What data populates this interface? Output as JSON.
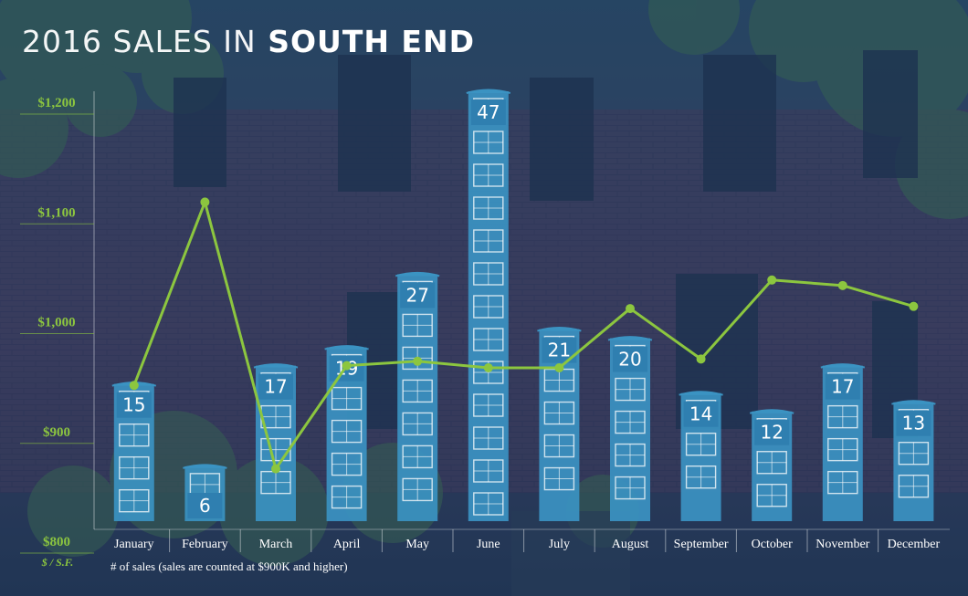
{
  "title": {
    "light": "2016 SALES IN",
    "bold": "SOUTH END"
  },
  "colors": {
    "line": "#8cc63f",
    "bar": "#3b93c2",
    "bar_dark": "#2f7fb0",
    "text": "#ffffff",
    "axis_text": "#8cc63f"
  },
  "chart_data": {
    "type": "bar+line",
    "categories": [
      "January",
      "February",
      "March",
      "April",
      "May",
      "June",
      "July",
      "August",
      "September",
      "October",
      "November",
      "December"
    ],
    "series": [
      {
        "values": [
          15,
          6,
          17,
          19,
          27,
          47,
          21,
          20,
          14,
          12,
          17,
          13
        ]
      },
      {
        "values": [
          942,
          1109,
          866,
          960,
          964,
          958,
          958,
          1012,
          966,
          1038,
          1033,
          1014
        ]
      }
    ],
    "y_axis": {
      "ticks": [
        "$800",
        "$900",
        "$1,000",
        "$1,100",
        "$1,200"
      ],
      "unit_label": "$ / S.F.",
      "ylim": [
        800,
        1225
      ]
    },
    "x_note": "# of sales (sales are counted at $900K and higher)",
    "grid": false
  }
}
